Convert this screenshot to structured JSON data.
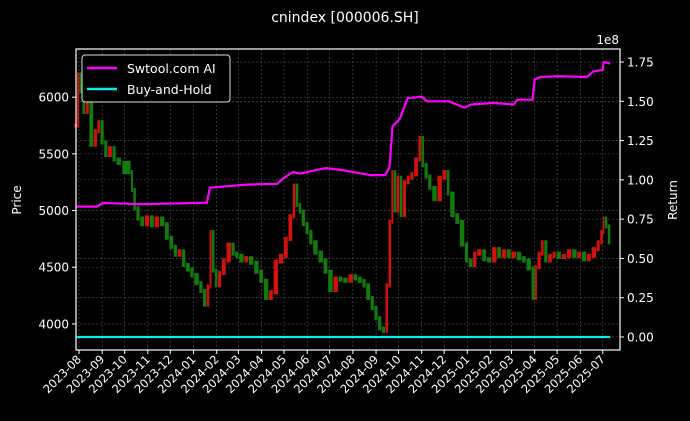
{
  "chart_data": {
    "type": "line",
    "title": "cnindex [000006.SH]",
    "xlim": [
      "2023-07-28",
      "2025-07-24"
    ],
    "x_ticks": [
      "2023-08",
      "2023-09",
      "2023-10",
      "2023-11",
      "2023-12",
      "2024-01",
      "2024-02",
      "2024-03",
      "2024-04",
      "2024-05",
      "2024-06",
      "2024-07",
      "2024-08",
      "2024-09",
      "2024-10",
      "2024-11",
      "2024-12",
      "2025-01",
      "2025-02",
      "2025-03",
      "2025-04",
      "2025-05",
      "2025-06",
      "2025-07"
    ],
    "left_axis": {
      "label": "Price",
      "ylim": [
        3770,
        6425
      ],
      "ticks": [
        4000,
        4500,
        5000,
        5500,
        6000
      ]
    },
    "right_axis": {
      "label": "Return",
      "offset_text": "1e8",
      "ylim": [
        -0.083,
        1.833
      ],
      "ticks": [
        "0.00",
        "0.25",
        "0.50",
        "0.75",
        "1.00",
        "1.25",
        "1.50",
        "1.75"
      ]
    },
    "grid": true,
    "legend_position": "upper-left",
    "colors": {
      "up": "#e8140c",
      "down": "#138a0c",
      "strategy": "#ff00ff",
      "buy_hold": "#00f0f0",
      "grid": "#555555"
    },
    "price_candles": [
      [
        "2023-07-29",
        5750
      ],
      [
        "2023-08-01",
        6200
      ],
      [
        "2023-08-05",
        6050
      ],
      [
        "2023-08-09",
        5870
      ],
      [
        "2023-08-14",
        5950
      ],
      [
        "2023-08-20",
        5580
      ],
      [
        "2023-08-25",
        5700
      ],
      [
        "2023-08-29",
        5780
      ],
      [
        "2023-09-03",
        5600
      ],
      [
        "2023-09-08",
        5490
      ],
      [
        "2023-09-14",
        5550
      ],
      [
        "2023-09-19",
        5450
      ],
      [
        "2023-09-26",
        5420
      ],
      [
        "2023-10-09",
        5340
      ],
      [
        "2023-10-12",
        5180
      ],
      [
        "2023-10-16",
        5020
      ],
      [
        "2023-10-21",
        4930
      ],
      [
        "2023-10-27",
        4880
      ],
      [
        "2023-11-03",
        4940
      ],
      [
        "2023-11-09",
        4870
      ],
      [
        "2023-11-16",
        4930
      ],
      [
        "2023-11-23",
        4880
      ],
      [
        "2023-11-29",
        4760
      ],
      [
        "2023-12-05",
        4680
      ],
      [
        "2023-12-10",
        4610
      ],
      [
        "2023-12-16",
        4640
      ],
      [
        "2023-12-21",
        4520
      ],
      [
        "2023-12-27",
        4480
      ],
      [
        "2024-01-01",
        4430
      ],
      [
        "2024-01-08",
        4360
      ],
      [
        "2024-01-13",
        4290
      ],
      [
        "2024-01-18",
        4170
      ],
      [
        "2024-01-22",
        4330
      ],
      [
        "2024-01-25",
        4810
      ],
      [
        "2024-01-29",
        4470
      ],
      [
        "2024-02-02",
        4340
      ],
      [
        "2024-02-07",
        4450
      ],
      [
        "2024-02-13",
        4560
      ],
      [
        "2024-02-20",
        4700
      ],
      [
        "2024-02-25",
        4620
      ],
      [
        "2024-03-01",
        4600
      ],
      [
        "2024-03-08",
        4560
      ],
      [
        "2024-03-14",
        4580
      ],
      [
        "2024-03-21",
        4540
      ],
      [
        "2024-03-28",
        4460
      ],
      [
        "2024-04-03",
        4380
      ],
      [
        "2024-04-10",
        4230
      ],
      [
        "2024-04-16",
        4280
      ],
      [
        "2024-04-23",
        4550
      ],
      [
        "2024-04-30",
        4600
      ],
      [
        "2024-05-06",
        4750
      ],
      [
        "2024-05-12",
        4950
      ],
      [
        "2024-05-16",
        5220
      ],
      [
        "2024-05-20",
        5050
      ],
      [
        "2024-05-24",
        4990
      ],
      [
        "2024-05-29",
        4880
      ],
      [
        "2024-06-03",
        4810
      ],
      [
        "2024-06-08",
        4720
      ],
      [
        "2024-06-15",
        4630
      ],
      [
        "2024-06-22",
        4560
      ],
      [
        "2024-06-28",
        4460
      ],
      [
        "2024-07-05",
        4300
      ],
      [
        "2024-07-12",
        4400
      ],
      [
        "2024-07-18",
        4390
      ],
      [
        "2024-07-25",
        4380
      ],
      [
        "2024-08-01",
        4420
      ],
      [
        "2024-08-07",
        4400
      ],
      [
        "2024-08-13",
        4380
      ],
      [
        "2024-08-18",
        4340
      ],
      [
        "2024-08-24",
        4230
      ],
      [
        "2024-08-29",
        4140
      ],
      [
        "2024-09-03",
        4050
      ],
      [
        "2024-09-08",
        3960
      ],
      [
        "2024-09-13",
        3940
      ],
      [
        "2024-09-17",
        4340
      ],
      [
        "2024-09-21",
        4900
      ],
      [
        "2024-09-24",
        5340
      ],
      [
        "2024-09-28",
        5000
      ],
      [
        "2024-10-02",
        5290
      ],
      [
        "2024-10-06",
        4960
      ],
      [
        "2024-10-11",
        5250
      ],
      [
        "2024-10-16",
        5290
      ],
      [
        "2024-10-21",
        5320
      ],
      [
        "2024-10-27",
        5450
      ],
      [
        "2024-10-31",
        5640
      ],
      [
        "2024-11-04",
        5400
      ],
      [
        "2024-11-09",
        5300
      ],
      [
        "2024-11-14",
        5200
      ],
      [
        "2024-11-21",
        5100
      ],
      [
        "2024-11-28",
        5290
      ],
      [
        "2024-12-04",
        5340
      ],
      [
        "2024-12-08",
        5150
      ],
      [
        "2024-12-15",
        4960
      ],
      [
        "2024-12-21",
        4900
      ],
      [
        "2024-12-28",
        4700
      ],
      [
        "2025-01-02",
        4560
      ],
      [
        "2025-01-08",
        4520
      ],
      [
        "2025-01-13",
        4620
      ],
      [
        "2025-01-20",
        4640
      ],
      [
        "2025-01-26",
        4570
      ],
      [
        "2025-02-02",
        4560
      ],
      [
        "2025-02-09",
        4660
      ],
      [
        "2025-02-15",
        4600
      ],
      [
        "2025-02-22",
        4640
      ],
      [
        "2025-02-28",
        4600
      ],
      [
        "2025-03-07",
        4620
      ],
      [
        "2025-03-14",
        4580
      ],
      [
        "2025-03-20",
        4560
      ],
      [
        "2025-03-27",
        4490
      ],
      [
        "2025-04-01",
        4230
      ],
      [
        "2025-04-04",
        4500
      ],
      [
        "2025-04-09",
        4620
      ],
      [
        "2025-04-13",
        4720
      ],
      [
        "2025-04-18",
        4560
      ],
      [
        "2025-04-24",
        4600
      ],
      [
        "2025-04-29",
        4620
      ],
      [
        "2025-05-06",
        4590
      ],
      [
        "2025-05-13",
        4600
      ],
      [
        "2025-05-20",
        4640
      ],
      [
        "2025-05-27",
        4600
      ],
      [
        "2025-06-02",
        4620
      ],
      [
        "2025-06-09",
        4570
      ],
      [
        "2025-06-15",
        4600
      ],
      [
        "2025-06-22",
        4660
      ],
      [
        "2025-06-27",
        4720
      ],
      [
        "2025-07-01",
        4810
      ],
      [
        "2025-07-03",
        4930
      ],
      [
        "2025-07-07",
        4860
      ],
      [
        "2025-07-11",
        4720
      ]
    ],
    "series": [
      {
        "name": "Swtool.com AI",
        "axis": "right",
        "points": [
          [
            "2023-07-29",
            0.83
          ],
          [
            "2023-08-25",
            0.83
          ],
          [
            "2023-09-02",
            0.853
          ],
          [
            "2023-10-21",
            0.845
          ],
          [
            "2023-12-14",
            0.85
          ],
          [
            "2024-01-19",
            0.855
          ],
          [
            "2024-01-23",
            0.95
          ],
          [
            "2024-03-12",
            0.97
          ],
          [
            "2024-04-22",
            0.975
          ],
          [
            "2024-04-30",
            1.01
          ],
          [
            "2024-05-13",
            1.05
          ],
          [
            "2024-05-22",
            1.04
          ],
          [
            "2024-06-26",
            1.075
          ],
          [
            "2024-07-20",
            1.06
          ],
          [
            "2024-08-24",
            1.03
          ],
          [
            "2024-09-13",
            1.03
          ],
          [
            "2024-09-19",
            1.08
          ],
          [
            "2024-09-23",
            1.34
          ],
          [
            "2024-10-03",
            1.39
          ],
          [
            "2024-10-13",
            1.52
          ],
          [
            "2024-11-01",
            1.53
          ],
          [
            "2024-11-08",
            1.5
          ],
          [
            "2024-12-07",
            1.5
          ],
          [
            "2024-12-28",
            1.46
          ],
          [
            "2025-01-06",
            1.48
          ],
          [
            "2025-02-05",
            1.49
          ],
          [
            "2025-03-04",
            1.48
          ],
          [
            "2025-03-09",
            1.51
          ],
          [
            "2025-03-29",
            1.51
          ],
          [
            "2025-04-01",
            1.64
          ],
          [
            "2025-04-09",
            1.655
          ],
          [
            "2025-05-02",
            1.66
          ],
          [
            "2025-06-10",
            1.655
          ],
          [
            "2025-06-18",
            1.69
          ],
          [
            "2025-07-01",
            1.7
          ],
          [
            "2025-07-02",
            1.75
          ],
          [
            "2025-07-11",
            1.74
          ]
        ]
      },
      {
        "name": "Buy-and-Hold",
        "axis": "right",
        "points": [
          [
            "2023-07-29",
            0.0
          ],
          [
            "2025-07-11",
            0.0
          ]
        ]
      }
    ]
  }
}
